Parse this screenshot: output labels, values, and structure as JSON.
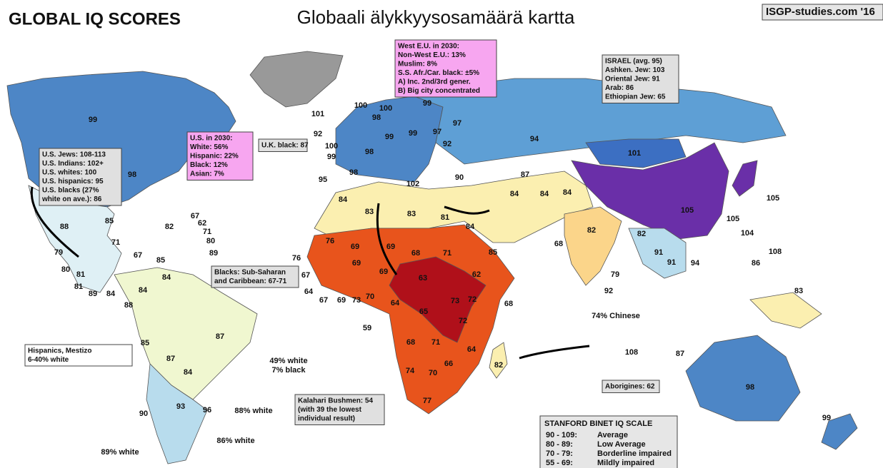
{
  "header": {
    "title": "GLOBAL IQ SCORES",
    "subtitle": "Globaali älykkyysosamäärä kartta",
    "credit": "ISGP-studies.com '16"
  },
  "boxes": [
    {
      "lines": [
        "U.S. Jews: 108-113",
        "U.S. Indians: 102+",
        "U.S. whites: 100",
        "U.S. hispanics: 95",
        "U.S. blacks (27%",
        "white on ave.): 86"
      ]
    },
    {
      "lines": [
        "U.S. in 2030:",
        "White: 56%",
        "Hispanic: 22%",
        "Black: 12%",
        "Asian: 7%"
      ]
    },
    {
      "lines": [
        "West E.U. in 2030:",
        "Non-West E.U.: 13%",
        "Muslim: 8%",
        "S.S. Afr./Car. black: ±5%",
        "A) Inc. 2nd/3rd gener.",
        "B) Big city concentrated"
      ]
    },
    {
      "lines": [
        "ISRAEL (avg. 95)",
        "Ashken. Jew: 103",
        "Oriental Jew: 91",
        "Arab: 86",
        "Ethiopian Jew: 65"
      ]
    },
    {
      "lines": [
        "U.K. black: 87"
      ]
    },
    {
      "lines": [
        "Blacks: Sub-Saharan",
        "and Caribbean: 67-71"
      ]
    },
    {
      "lines": [
        "Kalahari Bushmen: 54",
        "(with 39 the lowest",
        "individual result)"
      ]
    },
    {
      "lines": [
        "Aborigines: 62"
      ]
    },
    {
      "lines": [
        "Hispanics, Mestizo",
        "6-40% white"
      ]
    }
  ],
  "labels": [
    "99",
    "98",
    "88",
    "79",
    "80",
    "81",
    "81",
    "89",
    "84",
    "85",
    "82",
    "71",
    "67",
    "85",
    "67",
    "62",
    "71",
    "80",
    "89",
    "76",
    "101",
    "100",
    "98",
    "92",
    "100",
    "99",
    "98",
    "95",
    "98",
    "100",
    "99",
    "97",
    "99",
    "99",
    "97",
    "92",
    "102",
    "90",
    "94",
    "101",
    "105",
    "105",
    "105",
    "104",
    "108",
    "87",
    "84",
    "84",
    "84",
    "82",
    "68",
    "82",
    "91",
    "91",
    "94",
    "86",
    "79",
    "92",
    "108",
    "87",
    "83",
    "98",
    "99",
    "74% Chinese",
    "84",
    "83",
    "83",
    "81",
    "84",
    "85",
    "76",
    "69",
    "69",
    "68",
    "71",
    "69",
    "69",
    "63",
    "62",
    "73",
    "72",
    "72",
    "68",
    "65",
    "64",
    "68",
    "71",
    "64",
    "74",
    "70",
    "66",
    "77",
    "82",
    "67",
    "64",
    "67",
    "69",
    "73",
    "70",
    "59",
    "84",
    "84",
    "88",
    "87",
    "85",
    "87",
    "84",
    "90",
    "93",
    "96",
    "88% white",
    "86% white",
    "89% white",
    "49% white",
    "7% black"
  ],
  "scale": {
    "title": "STANFORD BINET IQ SCALE",
    "rows": [
      [
        "90 - 109:",
        "Average"
      ],
      [
        "80 - 89:",
        "Low Average"
      ],
      [
        "70 - 79:",
        "Borderline impaired"
      ],
      [
        "55 - 69:",
        "Mildly impaired"
      ]
    ]
  }
}
